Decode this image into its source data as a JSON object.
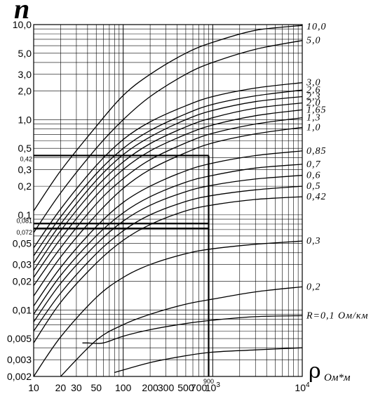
{
  "chart_data": {
    "type": "line",
    "xscale": "log",
    "yscale": "log",
    "xlim": [
      10,
      10000
    ],
    "ylim": [
      0.002,
      10
    ],
    "grid": true,
    "ylabel": "n",
    "xlabel": "ρ",
    "xlabel_sub": "Ом*м",
    "x_ticks": [
      {
        "v": 10,
        "t": "10"
      },
      {
        "v": 20,
        "t": "20"
      },
      {
        "v": 30,
        "t": "30"
      },
      {
        "v": 50,
        "t": "50"
      },
      {
        "v": 100,
        "t": "100"
      },
      {
        "v": 200,
        "t": "200"
      },
      {
        "v": 300,
        "t": "300"
      },
      {
        "v": 500,
        "t": "500"
      },
      {
        "v": 700,
        "t": "700"
      },
      {
        "v": 1000,
        "t": "10",
        "sup": "3"
      },
      {
        "v": 10000,
        "t": "10",
        "sup": "4"
      }
    ],
    "y_ticks": [
      {
        "v": 10,
        "t": "10,0"
      },
      {
        "v": 5,
        "t": "5,0"
      },
      {
        "v": 3,
        "t": "3,0"
      },
      {
        "v": 2,
        "t": "2,0"
      },
      {
        "v": 1,
        "t": "1,0"
      },
      {
        "v": 0.5,
        "t": "0,5"
      },
      {
        "v": 0.3,
        "t": "0,3"
      },
      {
        "v": 0.2,
        "t": "0,2"
      },
      {
        "v": 0.1,
        "t": "0,1"
      },
      {
        "v": 0.05,
        "t": "0,05"
      },
      {
        "v": 0.03,
        "t": "0,03"
      },
      {
        "v": 0.02,
        "t": "0,02"
      },
      {
        "v": 0.01,
        "t": "0,01"
      },
      {
        "v": 0.005,
        "t": "0,005"
      },
      {
        "v": 0.003,
        "t": "0,003"
      },
      {
        "v": 0.002,
        "t": "0,002"
      }
    ],
    "series": [
      {
        "name": "10,0",
        "points": [
          [
            10,
            0.11
          ],
          [
            20,
            0.29
          ],
          [
            50,
            0.85
          ],
          [
            100,
            1.8
          ],
          [
            200,
            3.0
          ],
          [
            500,
            5.0
          ],
          [
            1000,
            6.5
          ],
          [
            3000,
            8.7
          ],
          [
            10000,
            9.8
          ]
        ]
      },
      {
        "name": "5,0",
        "points": [
          [
            10,
            0.065
          ],
          [
            20,
            0.17
          ],
          [
            50,
            0.5
          ],
          [
            100,
            1.0
          ],
          [
            200,
            1.75
          ],
          [
            500,
            3.0
          ],
          [
            1000,
            4.0
          ],
          [
            3000,
            5.5
          ],
          [
            10000,
            6.8
          ]
        ]
      },
      {
        "name": "3,0",
        "points": [
          [
            10,
            0.045
          ],
          [
            20,
            0.115
          ],
          [
            50,
            0.33
          ],
          [
            100,
            0.62
          ],
          [
            200,
            0.95
          ],
          [
            500,
            1.4
          ],
          [
            1000,
            1.75
          ],
          [
            3000,
            2.15
          ],
          [
            10000,
            2.45
          ]
        ]
      },
      {
        "name": "2,6",
        "points": [
          [
            10,
            0.037
          ],
          [
            20,
            0.095
          ],
          [
            50,
            0.27
          ],
          [
            100,
            0.5
          ],
          [
            200,
            0.77
          ],
          [
            500,
            1.15
          ],
          [
            1000,
            1.45
          ],
          [
            3000,
            1.78
          ],
          [
            10000,
            2.05
          ]
        ]
      },
      {
        "name": "2,3",
        "points": [
          [
            10,
            0.031
          ],
          [
            20,
            0.08
          ],
          [
            50,
            0.23
          ],
          [
            100,
            0.43
          ],
          [
            200,
            0.66
          ],
          [
            500,
            1.0
          ],
          [
            1000,
            1.25
          ],
          [
            3000,
            1.55
          ],
          [
            10000,
            1.75
          ]
        ]
      },
      {
        "name": "2,0",
        "points": [
          [
            10,
            0.026
          ],
          [
            20,
            0.068
          ],
          [
            50,
            0.195
          ],
          [
            100,
            0.36
          ],
          [
            200,
            0.56
          ],
          [
            500,
            0.84
          ],
          [
            1000,
            1.05
          ],
          [
            3000,
            1.32
          ],
          [
            10000,
            1.5
          ]
        ]
      },
      {
        "name": "1,65",
        "points": [
          [
            10,
            0.022
          ],
          [
            20,
            0.056
          ],
          [
            50,
            0.16
          ],
          [
            100,
            0.3
          ],
          [
            200,
            0.47
          ],
          [
            500,
            0.7
          ],
          [
            1000,
            0.88
          ],
          [
            3000,
            1.1
          ],
          [
            10000,
            1.27
          ]
        ]
      },
      {
        "name": "1,3",
        "points": [
          [
            10,
            0.018
          ],
          [
            20,
            0.045
          ],
          [
            50,
            0.13
          ],
          [
            100,
            0.24
          ],
          [
            200,
            0.38
          ],
          [
            500,
            0.57
          ],
          [
            1000,
            0.72
          ],
          [
            3000,
            0.9
          ],
          [
            10000,
            1.05
          ]
        ]
      },
      {
        "name": "1,0",
        "points": [
          [
            10,
            0.014
          ],
          [
            20,
            0.036
          ],
          [
            50,
            0.1
          ],
          [
            100,
            0.19
          ],
          [
            200,
            0.3
          ],
          [
            500,
            0.45
          ],
          [
            1000,
            0.57
          ],
          [
            3000,
            0.71
          ],
          [
            10000,
            0.83
          ]
        ]
      },
      {
        "name": "0,85",
        "points": [
          [
            10,
            0.011
          ],
          [
            20,
            0.028
          ],
          [
            50,
            0.075
          ],
          [
            100,
            0.135
          ],
          [
            200,
            0.2
          ],
          [
            500,
            0.29
          ],
          [
            1000,
            0.35
          ],
          [
            3000,
            0.42
          ],
          [
            10000,
            0.47
          ]
        ]
      },
      {
        "name": "0,7",
        "points": [
          [
            10,
            0.009
          ],
          [
            20,
            0.023
          ],
          [
            50,
            0.06
          ],
          [
            100,
            0.105
          ],
          [
            200,
            0.155
          ],
          [
            500,
            0.22
          ],
          [
            1000,
            0.26
          ],
          [
            3000,
            0.31
          ],
          [
            10000,
            0.34
          ]
        ]
      },
      {
        "name": "0,6",
        "points": [
          [
            10,
            0.0075
          ],
          [
            20,
            0.019
          ],
          [
            50,
            0.049
          ],
          [
            100,
            0.086
          ],
          [
            200,
            0.126
          ],
          [
            500,
            0.175
          ],
          [
            1000,
            0.205
          ],
          [
            3000,
            0.238
          ],
          [
            10000,
            0.26
          ]
        ]
      },
      {
        "name": "0,5",
        "points": [
          [
            10,
            0.006
          ],
          [
            20,
            0.015
          ],
          [
            50,
            0.039
          ],
          [
            100,
            0.068
          ],
          [
            200,
            0.1
          ],
          [
            500,
            0.138
          ],
          [
            1000,
            0.16
          ],
          [
            3000,
            0.183
          ],
          [
            10000,
            0.2
          ]
        ]
      },
      {
        "name": "0,42",
        "points": [
          [
            10,
            0.0045
          ],
          [
            20,
            0.012
          ],
          [
            50,
            0.031
          ],
          [
            100,
            0.054
          ],
          [
            200,
            0.079
          ],
          [
            500,
            0.11
          ],
          [
            1000,
            0.127
          ],
          [
            3000,
            0.145
          ],
          [
            10000,
            0.155
          ]
        ]
      },
      {
        "name": "0,3",
        "points": [
          [
            10,
            0.002
          ],
          [
            20,
            0.0052
          ],
          [
            50,
            0.0135
          ],
          [
            100,
            0.022
          ],
          [
            200,
            0.03
          ],
          [
            500,
            0.039
          ],
          [
            1000,
            0.044
          ],
          [
            3000,
            0.049
          ],
          [
            10000,
            0.053
          ]
        ]
      },
      {
        "name": "0,2",
        "points": [
          [
            20,
            0.002
          ],
          [
            50,
            0.0048
          ],
          [
            100,
            0.007
          ],
          [
            200,
            0.009
          ],
          [
            500,
            0.0115
          ],
          [
            1000,
            0.013
          ],
          [
            3000,
            0.0155
          ],
          [
            10000,
            0.0175
          ]
        ]
      },
      {
        "name": "R=0,1 Ом/км",
        "points": [
          [
            35,
            0.0045
          ],
          [
            40,
            0.0045
          ],
          [
            60,
            0.0045
          ],
          [
            100,
            0.0053
          ],
          [
            200,
            0.0062
          ],
          [
            500,
            0.0072
          ],
          [
            1000,
            0.0078
          ],
          [
            3000,
            0.0085
          ],
          [
            10000,
            0.0087
          ]
        ]
      },
      {
        "name": "",
        "points": [
          [
            80,
            0.0022
          ],
          [
            200,
            0.0028
          ],
          [
            500,
            0.0033
          ],
          [
            1000,
            0.0036
          ],
          [
            3000,
            0.0038
          ],
          [
            10000,
            0.004
          ]
        ]
      }
    ],
    "annotations": {
      "x_marker": {
        "v": 900,
        "t": "900"
      },
      "y_markers": [
        {
          "v": 0.42,
          "t": "0,42"
        },
        {
          "v": 0.081,
          "t": "0,081"
        },
        {
          "v": 0.072,
          "t": "0,072"
        }
      ]
    }
  }
}
